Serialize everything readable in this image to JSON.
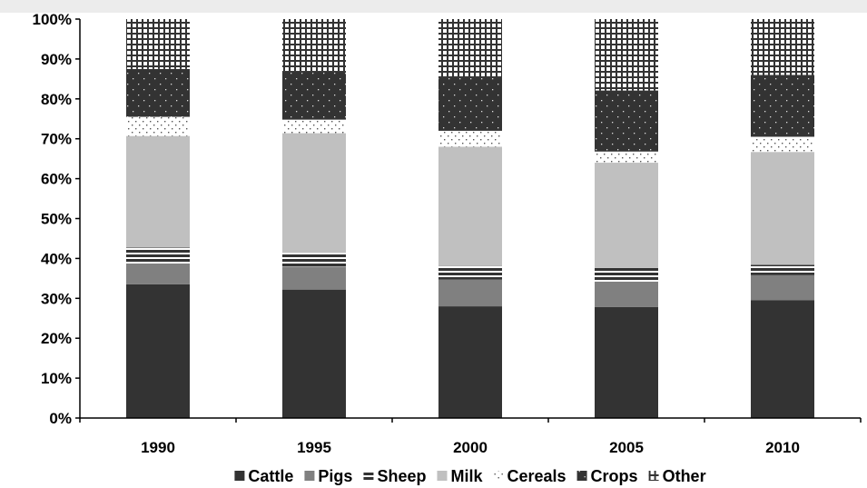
{
  "chart_data": {
    "type": "bar",
    "stacked": true,
    "percent": true,
    "categories": [
      "1990",
      "1995",
      "2000",
      "2005",
      "2010"
    ],
    "series": [
      {
        "name": "Cattle",
        "values": [
          33.5,
          32.2,
          28.0,
          27.8,
          29.5
        ],
        "color": "#333333",
        "pattern": "solid"
      },
      {
        "name": "Pigs",
        "values": [
          5.2,
          5.8,
          6.7,
          6.4,
          6.3
        ],
        "color": "#808080",
        "pattern": "solid"
      },
      {
        "name": "Sheep",
        "values": [
          4.0,
          3.4,
          3.4,
          3.4,
          2.6
        ],
        "color": "#333333",
        "pattern": "horizontal-stripes"
      },
      {
        "name": "Milk",
        "values": [
          28.0,
          30.0,
          29.9,
          26.4,
          28.3
        ],
        "color": "#c0c0c0",
        "pattern": "solid"
      },
      {
        "name": "Cereals",
        "values": [
          4.8,
          3.4,
          4.0,
          2.8,
          3.8
        ],
        "color": "#ffffff",
        "pattern": "dots-dark"
      },
      {
        "name": "Crops",
        "values": [
          12.0,
          12.0,
          13.2,
          15.3,
          15.5
        ],
        "color": "#333333",
        "pattern": "dots-light"
      },
      {
        "name": "Other",
        "values": [
          12.5,
          13.2,
          14.8,
          17.9,
          14.0
        ],
        "color": "#333333",
        "pattern": "grid"
      }
    ],
    "yticks": [
      "0%",
      "10%",
      "20%",
      "30%",
      "40%",
      "50%",
      "60%",
      "70%",
      "80%",
      "90%",
      "100%"
    ],
    "ylim": [
      0,
      100
    ],
    "legend_position": "bottom",
    "grid": false
  }
}
